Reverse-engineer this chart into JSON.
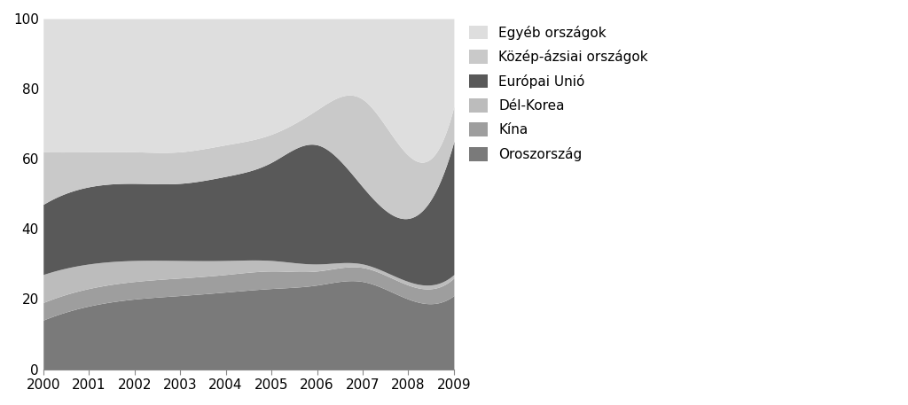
{
  "years": [
    2000,
    2001,
    2002,
    2003,
    2004,
    2005,
    2006,
    2007,
    2008,
    2009
  ],
  "series": {
    "Oroszország": [
      14,
      18,
      20,
      21,
      22,
      23,
      24,
      25,
      20,
      21
    ],
    "Kína": [
      5,
      5,
      5,
      5,
      5,
      5,
      4,
      4,
      4,
      5
    ],
    "Dél-Korea": [
      8,
      7,
      6,
      5,
      4,
      3,
      2,
      1,
      1,
      1
    ],
    "Európai Unió": [
      20,
      22,
      22,
      22,
      24,
      28,
      34,
      22,
      18,
      38
    ],
    "Közép-ázsiai országok": [
      15,
      10,
      9,
      9,
      9,
      8,
      10,
      25,
      18,
      10
    ],
    "Egyéb országok": [
      38,
      38,
      38,
      38,
      36,
      33,
      26,
      23,
      39,
      25
    ]
  },
  "colors": {
    "Oroszország": "#7a7a7a",
    "Kína": "#9e9e9e",
    "Dél-Korea": "#bcbcbc",
    "Európai Unió": "#595959",
    "Közép-ázsiai országok": "#c9c9c9",
    "Egyéb országok": "#dedede"
  },
  "ylim": [
    0,
    100
  ],
  "yticks": [
    0,
    20,
    40,
    60,
    80,
    100
  ],
  "legend_order": [
    "Egyéb országok",
    "Közép-ázsiai országok",
    "Európai Unió",
    "Dél-Korea",
    "Kína",
    "Oroszország"
  ],
  "bg_color": "#ffffff",
  "fontsize": 11,
  "figsize": [
    10.24,
    4.57
  ],
  "dpi": 100
}
